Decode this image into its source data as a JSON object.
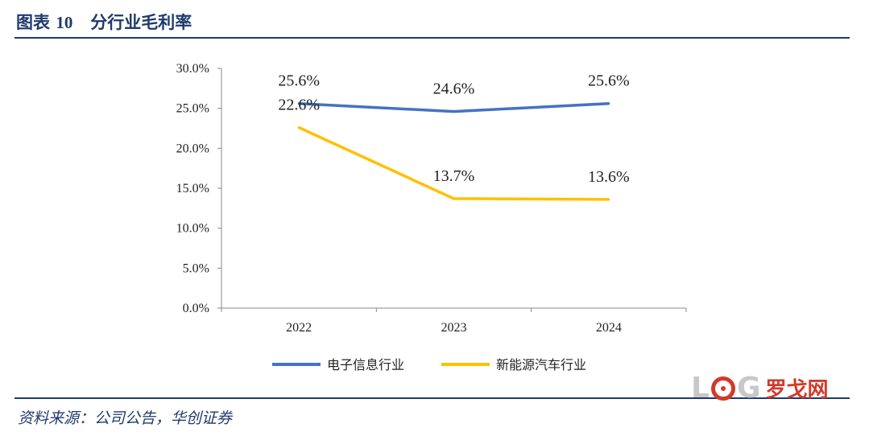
{
  "figure": {
    "label": "图表",
    "number": "10",
    "title": "分行业毛利率",
    "source": "资料来源：公司公告，华创证券"
  },
  "watermark": {
    "brand_latin": [
      "L",
      "G"
    ],
    "brand_cn": "罗戈网"
  },
  "colors": {
    "title": "#1f3a6b",
    "electronics": "#4472c4",
    "nev": "#ffc000"
  },
  "chart_data": {
    "type": "line",
    "categories": [
      "2022",
      "2023",
      "2024"
    ],
    "series": [
      {
        "name": "电子信息行业",
        "values": [
          25.6,
          24.6,
          25.6
        ],
        "labels": [
          "25.6%",
          "24.6%",
          "25.6%"
        ],
        "color": "#4472c4"
      },
      {
        "name": "新能源汽车行业",
        "values": [
          22.6,
          13.7,
          13.6
        ],
        "labels": [
          "22.6%",
          "13.7%",
          "13.6%"
        ],
        "color": "#ffc000"
      }
    ],
    "ylim": [
      0,
      30
    ],
    "yticks": [
      0,
      5,
      10,
      15,
      20,
      25,
      30
    ],
    "ytick_labels": [
      "0.0%",
      "5.0%",
      "10.0%",
      "15.0%",
      "20.0%",
      "25.0%",
      "30.0%"
    ],
    "xlabel": "",
    "ylabel": "",
    "grid": false,
    "legend_position": "bottom"
  }
}
